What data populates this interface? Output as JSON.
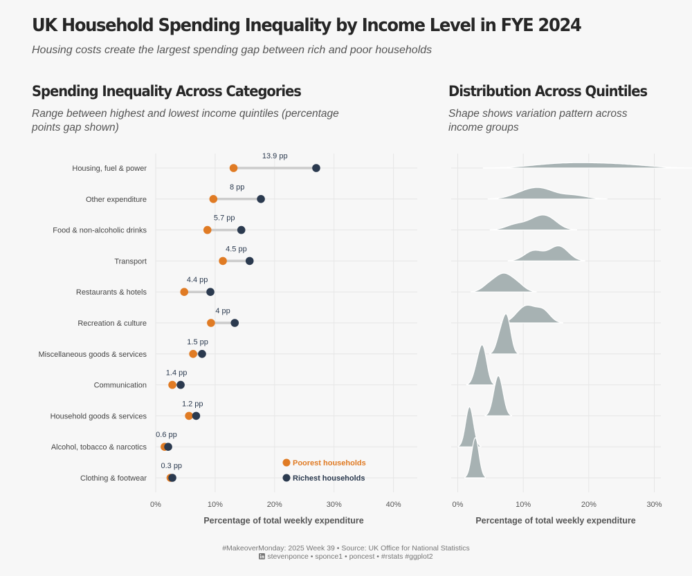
{
  "header": {
    "title": "UK Household Spending Inequality by Income Level in FYE 2024",
    "subtitle": "Housing costs create the largest spending gap between rich and poor households"
  },
  "left_panel": {
    "title": "Spending Inequality Across Categories",
    "subtitle": "Range between highest and lowest income quintiles (percentage points gap shown)",
    "xlabel": "Percentage of total weekly expenditure",
    "legend": {
      "poorest": "Poorest households",
      "richest": "Richest households"
    }
  },
  "right_panel": {
    "title": "Distribution Across Quintiles",
    "subtitle": "Shape shows variation pattern across income groups",
    "xlabel": "Percentage of total weekly expenditure"
  },
  "colors": {
    "poorest": "#e07b24",
    "richest": "#2b3a4f",
    "segment": "#cccccc",
    "ridge_fill": "#a7b2b3",
    "grid": "#e6e6e6"
  },
  "chart_data": [
    {
      "type": "dumbbell",
      "title": "Spending Inequality Across Categories",
      "xlabel": "Percentage of total weekly expenditure",
      "xlim": [
        0,
        44
      ],
      "xticks": [
        0,
        10,
        20,
        30,
        40
      ],
      "xtick_labels": [
        "0%",
        "10%",
        "20%",
        "30%",
        "40%"
      ],
      "categories": [
        "Housing, fuel & power",
        "Other expenditure",
        "Food & non-alcoholic drinks",
        "Transport",
        "Restaurants & hotels",
        "Recreation & culture",
        "Miscellaneous goods & services",
        "Communication",
        "Household goods & services",
        "Alcohol, tobacco & narcotics",
        "Clothing & footwear"
      ],
      "poorest": [
        13.1,
        9.7,
        8.7,
        11.3,
        4.8,
        9.3,
        6.3,
        2.8,
        5.6,
        1.5,
        2.5
      ],
      "richest": [
        27.0,
        17.7,
        14.4,
        15.8,
        9.2,
        13.3,
        7.8,
        4.2,
        6.8,
        2.1,
        2.8
      ],
      "gap_labels": [
        "13.9 pp",
        "8 pp",
        "5.7 pp",
        "4.5 pp",
        "4.4 pp",
        "4 pp",
        "1.5 pp",
        "1.4 pp",
        "1.2 pp",
        "0.6 pp",
        "0.3 pp"
      ],
      "legend": [
        "Poorest households",
        "Richest households"
      ]
    },
    {
      "type": "ridgeline",
      "title": "Distribution Across Quintiles",
      "xlabel": "Percentage of total weekly expenditure",
      "xlim": [
        -1,
        31
      ],
      "xticks": [
        0,
        10,
        20,
        30
      ],
      "xtick_labels": [
        "0%",
        "10%",
        "20%",
        "30%"
      ],
      "series": [
        {
          "name": "Housing, fuel & power",
          "values": [
            13.1,
            16.4,
            19.6,
            22.8,
            27.0
          ]
        },
        {
          "name": "Other expenditure",
          "values": [
            9.7,
            11.4,
            12.8,
            13.5,
            17.7
          ]
        },
        {
          "name": "Food & non-alcoholic drinks",
          "values": [
            8.7,
            11.2,
            12.6,
            13.4,
            14.4
          ]
        },
        {
          "name": "Transport",
          "values": [
            11.3,
            11.9,
            14.8,
            15.6,
            15.8
          ]
        },
        {
          "name": "Restaurants & hotels",
          "values": [
            4.8,
            6.3,
            7.0,
            7.8,
            9.2
          ]
        },
        {
          "name": "Recreation & culture",
          "values": [
            9.3,
            10.5,
            11.0,
            12.6,
            13.3
          ]
        },
        {
          "name": "Miscellaneous goods & services",
          "values": [
            6.3,
            6.9,
            7.3,
            7.6,
            7.8
          ]
        },
        {
          "name": "Communication",
          "values": [
            2.8,
            3.4,
            3.7,
            3.9,
            4.2
          ]
        },
        {
          "name": "Household goods & services",
          "values": [
            5.6,
            6.0,
            6.2,
            6.4,
            6.8
          ]
        },
        {
          "name": "Alcohol, tobacco & narcotics",
          "values": [
            1.5,
            1.6,
            1.8,
            2.0,
            2.1
          ]
        },
        {
          "name": "Clothing & footwear",
          "values": [
            2.5,
            2.6,
            2.7,
            2.8,
            2.8
          ]
        }
      ]
    }
  ],
  "caption": {
    "line1": "#MakeoverMonday: 2025 Week 39 • Source: UK Office for National Statistics",
    "line2": "stevenponce • sponce1 • poncest • #rstats #ggplot2"
  }
}
